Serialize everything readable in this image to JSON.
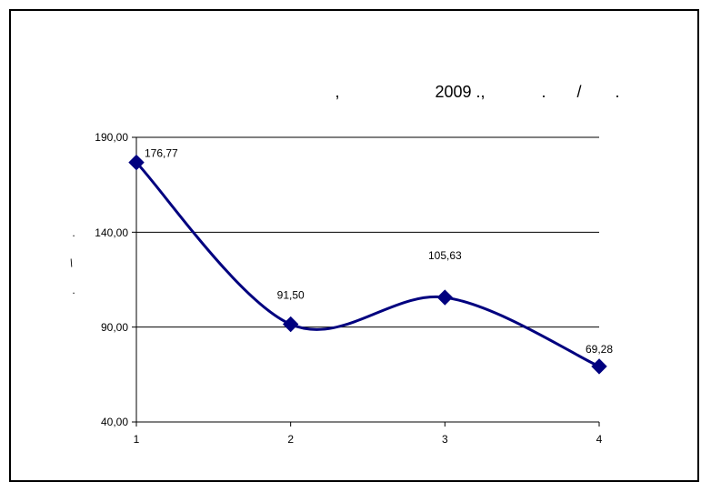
{
  "chart_data": {
    "type": "line",
    "title_parts": [
      ",",
      "2009 .,",
      ".",
      "/",
      "."
    ],
    "ylabel_parts": [
      ".",
      "/",
      "."
    ],
    "categories": [
      "1",
      "2",
      "3",
      "4"
    ],
    "values": [
      176.77,
      91.5,
      105.63,
      69.28
    ],
    "data_labels": [
      "176,77",
      "91,50",
      "105,63",
      "69,28"
    ],
    "y_ticks": [
      "190,00",
      "140,00",
      "90,00",
      "40,00"
    ],
    "ylim": [
      40,
      190
    ],
    "gridlines": true,
    "colors": {
      "series": "#00007f",
      "grid": "#000000"
    }
  }
}
